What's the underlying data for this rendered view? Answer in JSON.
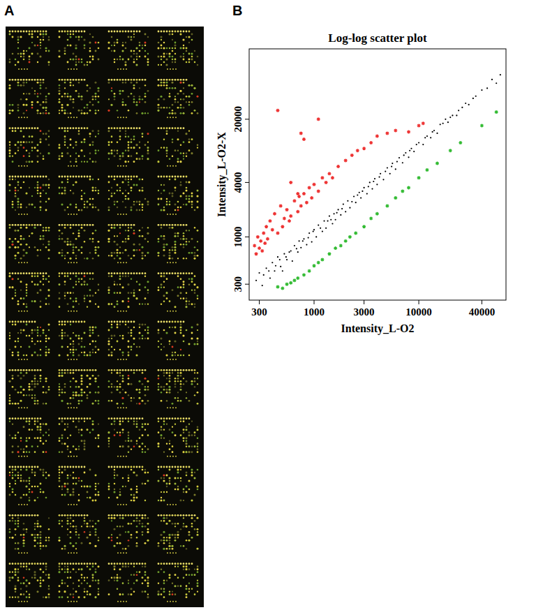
{
  "panels": {
    "a": {
      "label": "A"
    },
    "b": {
      "label": "B"
    }
  },
  "chart_data": {
    "type": "scatter",
    "title": "Log-log scatter plot",
    "x_label": "Intensity_L-O2",
    "y_label": "Intensity_L-O2-X",
    "log": true,
    "grid": false,
    "xlim": [
      240,
      68000
    ],
    "ylim": [
      200,
      120000
    ],
    "xticks": [
      300,
      1000,
      3000,
      10000,
      40000
    ],
    "yticks": [
      300,
      1000,
      4000,
      20000
    ],
    "series": [
      {
        "color": "#000000",
        "marker": "dot",
        "x": [
          280,
          300,
          320,
          350,
          380,
          400,
          420,
          450,
          480,
          500,
          520,
          550,
          600,
          620,
          650,
          700,
          720,
          750,
          800,
          850,
          900,
          950,
          1000,
          1050,
          1100,
          1200,
          1250,
          1300,
          1400,
          1500,
          1550,
          1600,
          1700,
          1800,
          1900,
          2000,
          2100,
          2200,
          2400,
          2500,
          2700,
          2800,
          3000,
          3200,
          3400,
          3600,
          3800,
          4000,
          4300,
          4600,
          5000,
          5300,
          5600,
          6000,
          6500,
          7000,
          7500,
          8000,
          8500,
          9000,
          10000,
          11000,
          12000,
          13000,
          14000,
          15000,
          17000,
          19000,
          21000,
          23000,
          26000,
          30000,
          35000,
          40000,
          45000,
          50000,
          55000,
          60000,
          330,
          370,
          430,
          470,
          540,
          580,
          680,
          780,
          880,
          980,
          1150,
          1350,
          1450,
          1650,
          1850,
          2300,
          2600,
          2900,
          3300,
          3700,
          4200,
          4800,
          5500,
          6200,
          7200,
          8200,
          9500,
          11500,
          13500,
          16000,
          18000,
          20000,
          24000,
          28000,
          33000
        ],
        "values": [
          330,
          400,
          290,
          450,
          350,
          520,
          420,
          600,
          470,
          420,
          650,
          560,
          700,
          540,
          800,
          680,
          900,
          760,
          950,
          820,
          1100,
          880,
          1200,
          1000,
          1350,
          1150,
          1500,
          1250,
          1700,
          1400,
          1800,
          1550,
          2000,
          1750,
          2300,
          1900,
          2500,
          2100,
          2800,
          2400,
          3100,
          2700,
          3500,
          3000,
          4000,
          3400,
          4400,
          3800,
          5000,
          4300,
          5800,
          5000,
          6500,
          5600,
          7500,
          6600,
          8500,
          7600,
          9500,
          8800,
          11000,
          10500,
          13000,
          12500,
          15000,
          14000,
          18000,
          18500,
          22000,
          22000,
          27000,
          29000,
          36000,
          42000,
          44000,
          55000,
          50000,
          62000,
          380,
          420,
          480,
          560,
          600,
          680,
          740,
          900,
          980,
          1150,
          1250,
          1500,
          1550,
          1850,
          2050,
          2450,
          2900,
          3200,
          3600,
          4100,
          4600,
          5300,
          6000,
          6800,
          8000,
          9000,
          10500,
          12500,
          14500,
          17500,
          20000,
          21000,
          25000,
          30000,
          34000
        ]
      },
      {
        "color": "#33bb33",
        "marker": "star",
        "x": [
          450,
          500,
          550,
          600,
          650,
          700,
          800,
          900,
          1000,
          1100,
          1200,
          1400,
          1600,
          1800,
          2000,
          2200,
          2500,
          3000,
          3500,
          4000,
          5000,
          6000,
          7000,
          8000,
          10000,
          12000,
          15000,
          20000,
          25000,
          40000,
          55000
        ],
        "values": [
          280,
          270,
          300,
          310,
          330,
          350,
          380,
          420,
          480,
          520,
          560,
          650,
          750,
          800,
          900,
          1000,
          1100,
          1300,
          1600,
          1800,
          2200,
          2700,
          3200,
          3500,
          4500,
          5500,
          6500,
          9000,
          11000,
          17000,
          24000
        ]
      },
      {
        "color": "#ee3333",
        "marker": "star",
        "x": [
          270,
          280,
          290,
          300,
          310,
          320,
          330,
          340,
          350,
          360,
          380,
          400,
          420,
          450,
          480,
          500,
          520,
          550,
          580,
          600,
          650,
          700,
          720,
          750,
          800,
          850,
          900,
          950,
          1000,
          1100,
          1200,
          1300,
          1400,
          1500,
          1700,
          2000,
          2300,
          2600,
          3000,
          3500,
          4000,
          5000,
          6000,
          8000,
          10000,
          11000,
          450,
          750,
          800,
          1100,
          600,
          700
        ],
        "values": [
          800,
          650,
          1000,
          750,
          900,
          700,
          1100,
          850,
          1300,
          950,
          1500,
          1200,
          1800,
          1100,
          2200,
          1300,
          1600,
          2000,
          1500,
          1700,
          2500,
          1900,
          2800,
          2200,
          3000,
          2400,
          3500,
          2700,
          3800,
          3200,
          4500,
          4000,
          5000,
          4500,
          6000,
          7000,
          8000,
          9000,
          9500,
          11000,
          13000,
          14000,
          15000,
          14500,
          17000,
          18000,
          25000,
          14000,
          12000,
          20000,
          4000,
          3000
        ]
      }
    ]
  }
}
